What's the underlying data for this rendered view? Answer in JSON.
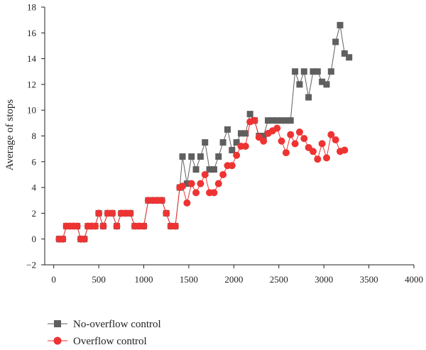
{
  "chart_data": {
    "type": "line",
    "title": "",
    "xlabel": "",
    "ylabel": "Average of stops",
    "xlim": [
      -100,
      4000
    ],
    "ylim": [
      -2,
      18
    ],
    "xticks": [
      0,
      500,
      1000,
      1500,
      2000,
      2500,
      3000,
      3500,
      4000
    ],
    "yticks": [
      -2,
      0,
      2,
      4,
      6,
      8,
      10,
      12,
      14,
      16,
      18
    ],
    "grid": false,
    "legend_position": "bottom-left",
    "series": [
      {
        "name": "No-overflow control",
        "color": "#5f5f5f",
        "marker": "square",
        "points": [
          [
            60,
            0
          ],
          [
            100,
            0
          ],
          [
            140,
            1
          ],
          [
            180,
            1
          ],
          [
            220,
            1
          ],
          [
            260,
            1
          ],
          [
            300,
            0
          ],
          [
            340,
            0
          ],
          [
            380,
            1
          ],
          [
            420,
            1
          ],
          [
            460,
            1
          ],
          [
            500,
            2
          ],
          [
            550,
            1
          ],
          [
            600,
            2
          ],
          [
            650,
            2
          ],
          [
            700,
            1
          ],
          [
            750,
            2
          ],
          [
            800,
            2
          ],
          [
            850,
            2
          ],
          [
            900,
            1
          ],
          [
            950,
            1
          ],
          [
            1000,
            1
          ],
          [
            1050,
            3
          ],
          [
            1100,
            3
          ],
          [
            1150,
            3
          ],
          [
            1200,
            3
          ],
          [
            1250,
            2
          ],
          [
            1300,
            1
          ],
          [
            1350,
            1
          ],
          [
            1400,
            4
          ],
          [
            1430,
            6.4
          ],
          [
            1480,
            4.3
          ],
          [
            1530,
            6.4
          ],
          [
            1580,
            5.4
          ],
          [
            1630,
            6.4
          ],
          [
            1680,
            7.5
          ],
          [
            1730,
            5.4
          ],
          [
            1780,
            5.4
          ],
          [
            1830,
            6.4
          ],
          [
            1880,
            7.5
          ],
          [
            1930,
            8.5
          ],
          [
            1980,
            6.9
          ],
          [
            2030,
            7.5
          ],
          [
            2080,
            8.2
          ],
          [
            2130,
            8.2
          ],
          [
            2180,
            9.7
          ],
          [
            2230,
            9.2
          ],
          [
            2280,
            8
          ],
          [
            2330,
            8
          ],
          [
            2380,
            9.2
          ],
          [
            2430,
            9.2
          ],
          [
            2480,
            9.2
          ],
          [
            2530,
            9.2
          ],
          [
            2580,
            9.2
          ],
          [
            2630,
            9.2
          ],
          [
            2680,
            13
          ],
          [
            2730,
            12
          ],
          [
            2780,
            13
          ],
          [
            2830,
            11
          ],
          [
            2880,
            13
          ],
          [
            2930,
            13
          ],
          [
            2980,
            12.2
          ],
          [
            3030,
            12
          ],
          [
            3080,
            13
          ],
          [
            3130,
            15.3
          ],
          [
            3180,
            16.6
          ],
          [
            3230,
            14.4
          ],
          [
            3280,
            14.1
          ]
        ]
      },
      {
        "name": "Overflow control",
        "color": "#ee3333",
        "marker": "circle",
        "points": [
          [
            60,
            0
          ],
          [
            100,
            0
          ],
          [
            140,
            1
          ],
          [
            180,
            1
          ],
          [
            220,
            1
          ],
          [
            260,
            1
          ],
          [
            300,
            0
          ],
          [
            340,
            0
          ],
          [
            380,
            1
          ],
          [
            420,
            1
          ],
          [
            460,
            1
          ],
          [
            500,
            2
          ],
          [
            550,
            1
          ],
          [
            600,
            2
          ],
          [
            650,
            2
          ],
          [
            700,
            1
          ],
          [
            750,
            2
          ],
          [
            800,
            2
          ],
          [
            850,
            2
          ],
          [
            900,
            1
          ],
          [
            950,
            1
          ],
          [
            1000,
            1
          ],
          [
            1050,
            3
          ],
          [
            1100,
            3
          ],
          [
            1150,
            3
          ],
          [
            1200,
            3
          ],
          [
            1250,
            2
          ],
          [
            1300,
            1
          ],
          [
            1350,
            1
          ],
          [
            1400,
            4
          ],
          [
            1430,
            4.1
          ],
          [
            1480,
            2.8
          ],
          [
            1530,
            4.3
          ],
          [
            1580,
            3.6
          ],
          [
            1630,
            4.3
          ],
          [
            1680,
            5
          ],
          [
            1730,
            3.6
          ],
          [
            1780,
            3.6
          ],
          [
            1830,
            4.3
          ],
          [
            1880,
            5
          ],
          [
            1930,
            5.7
          ],
          [
            1980,
            5.7
          ],
          [
            2030,
            6.5
          ],
          [
            2080,
            7.2
          ],
          [
            2130,
            7.2
          ],
          [
            2180,
            9.1
          ],
          [
            2230,
            9.2
          ],
          [
            2280,
            7.9
          ],
          [
            2330,
            7.6
          ],
          [
            2380,
            8.2
          ],
          [
            2430,
            8.4
          ],
          [
            2480,
            8.6
          ],
          [
            2530,
            7.6
          ],
          [
            2580,
            6.7
          ],
          [
            2630,
            8.1
          ],
          [
            2680,
            7.4
          ],
          [
            2730,
            8.3
          ],
          [
            2780,
            7.8
          ],
          [
            2830,
            7.1
          ],
          [
            2880,
            6.8
          ],
          [
            2930,
            6.2
          ],
          [
            2980,
            7.4
          ],
          [
            3030,
            6.3
          ],
          [
            3080,
            8.1
          ],
          [
            3130,
            7.7
          ],
          [
            3180,
            6.8
          ],
          [
            3230,
            6.9
          ]
        ]
      }
    ]
  }
}
